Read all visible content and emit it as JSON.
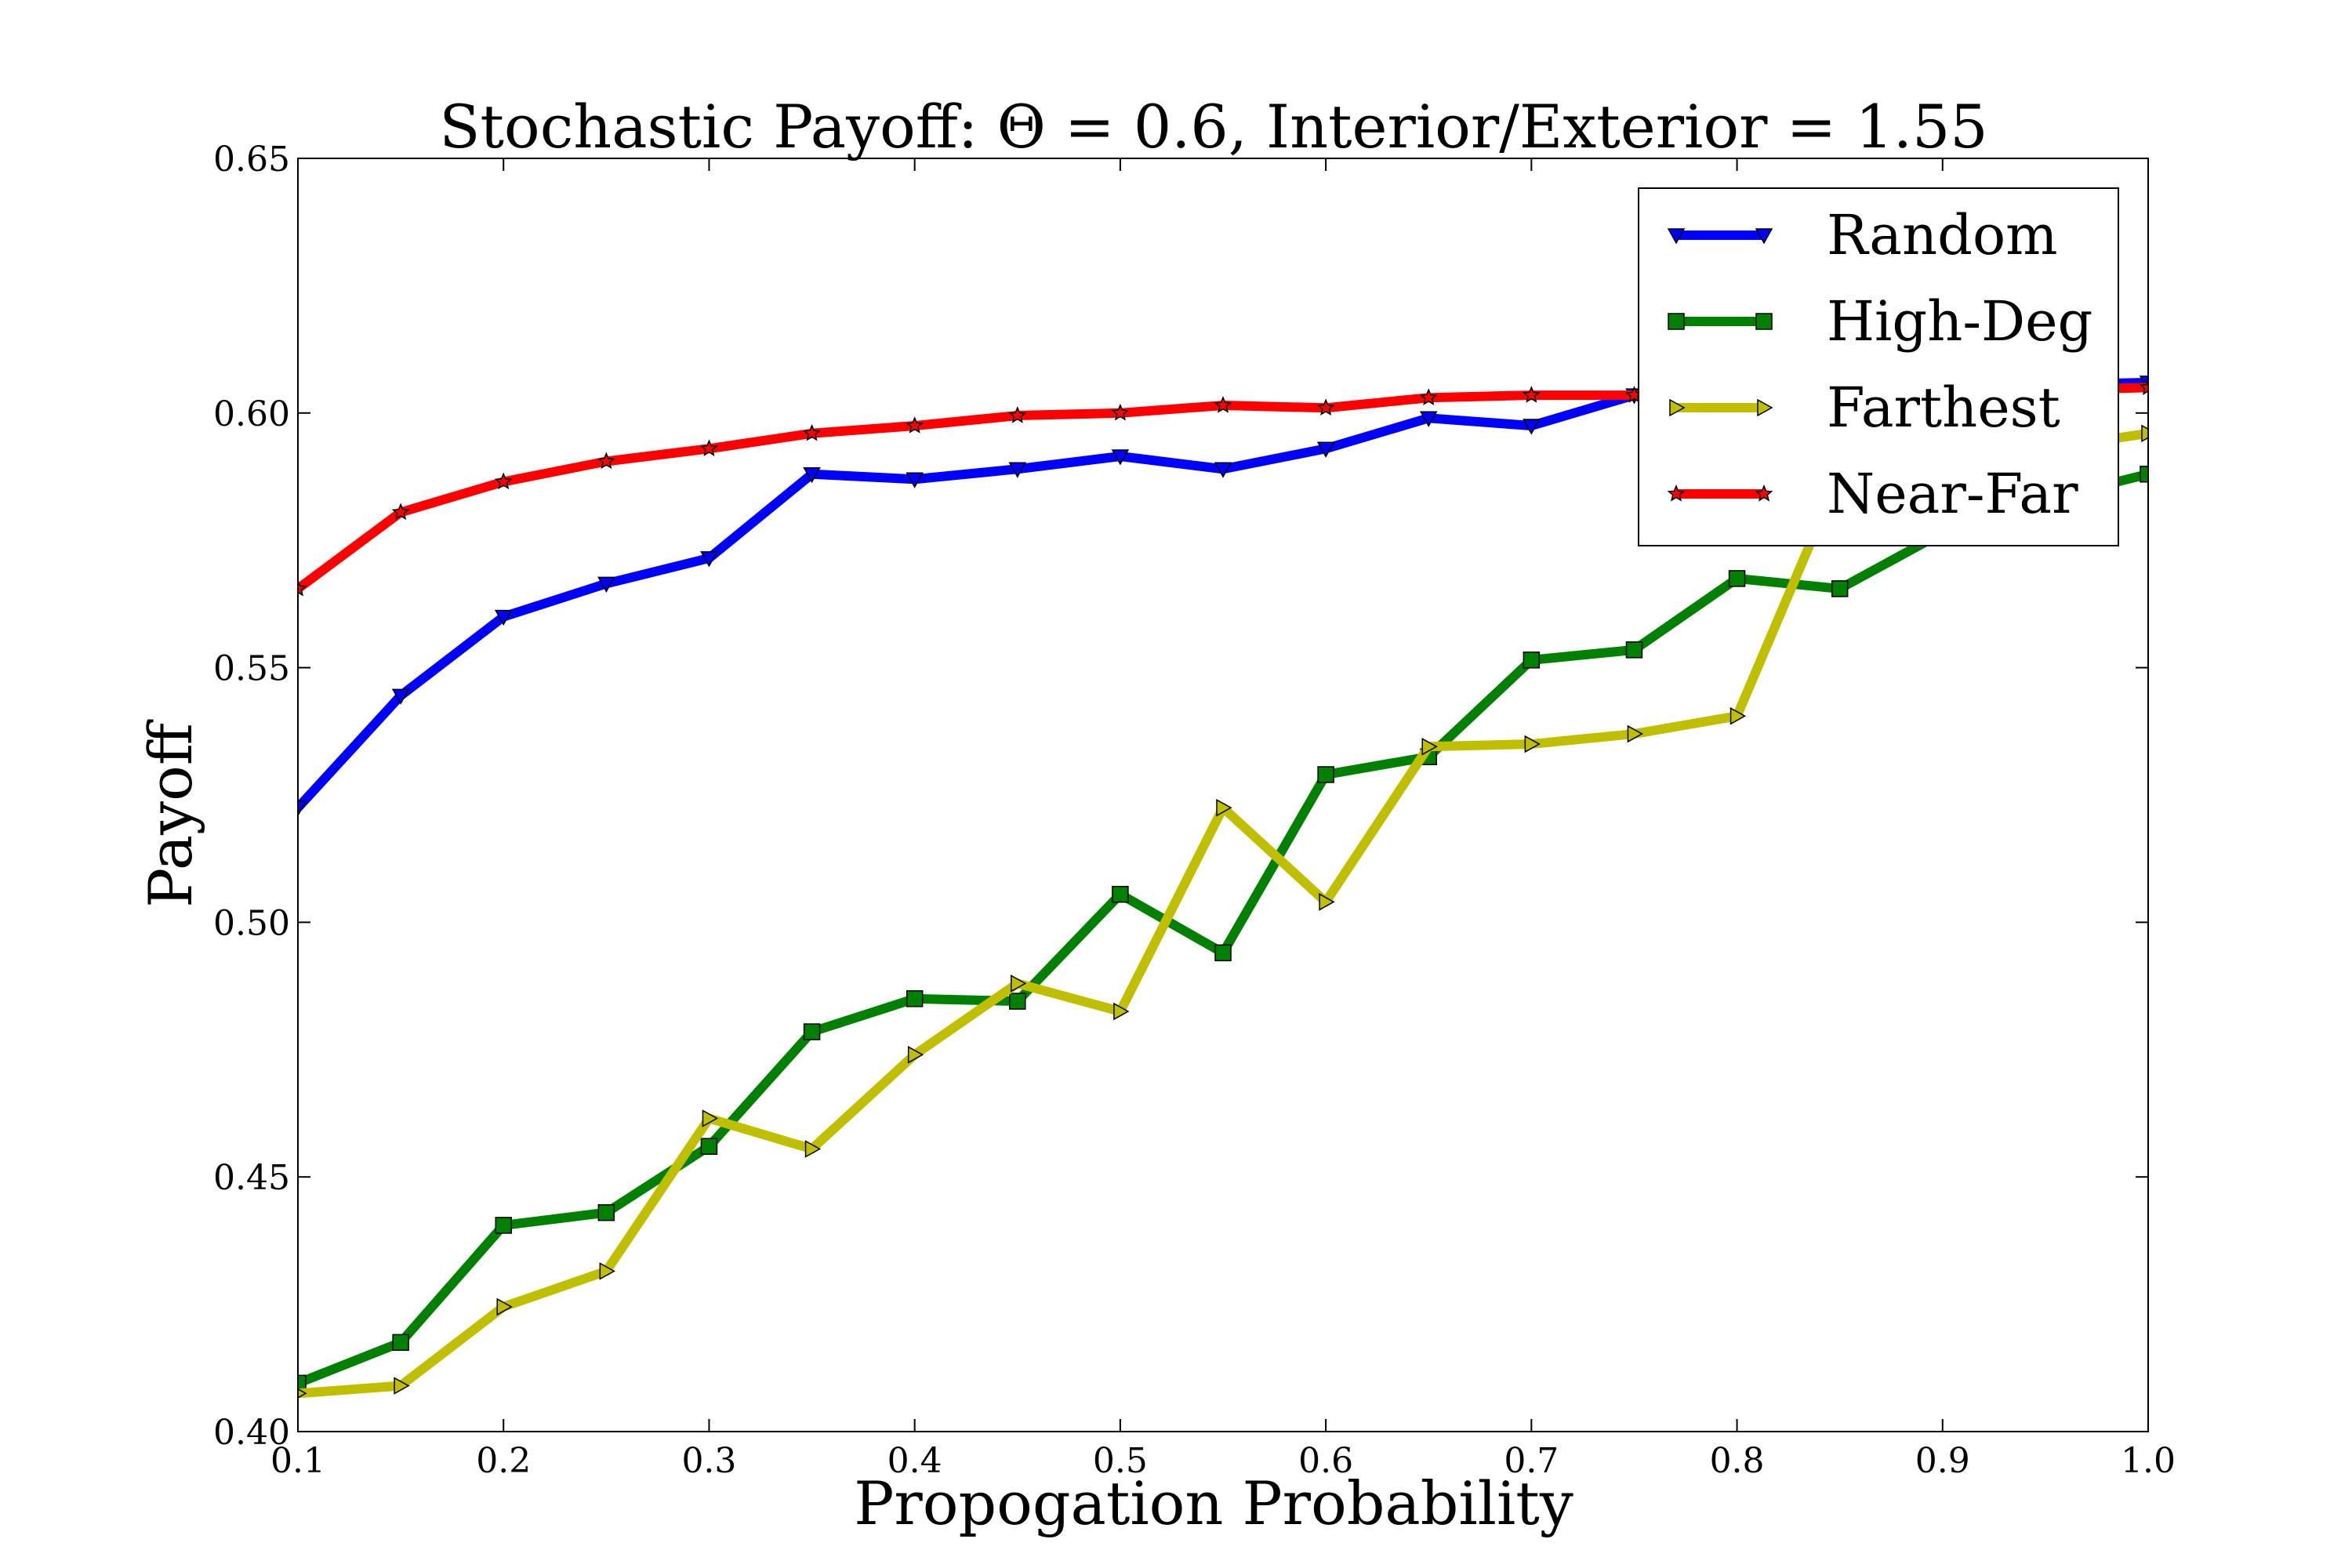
{
  "chart_data": {
    "type": "line",
    "title": "Stochastic Payoff: Θ = 0.6, Interior/Exterior = 1.55",
    "xlabel": "Propogation Probability",
    "ylabel": "Payoff",
    "xlim": [
      0.1,
      1.0
    ],
    "ylim": [
      0.4,
      0.65
    ],
    "xticks": [
      "0.1",
      "0.2",
      "0.3",
      "0.4",
      "0.5",
      "0.6",
      "0.7",
      "0.8",
      "0.9",
      "1.0"
    ],
    "yticks": [
      "0.40",
      "0.45",
      "0.50",
      "0.55",
      "0.60",
      "0.65"
    ],
    "grid": false,
    "legend_position": "top-right",
    "x": [
      0.1,
      0.15,
      0.2,
      0.25,
      0.3,
      0.35,
      0.4,
      0.45,
      0.5,
      0.55,
      0.6,
      0.65,
      0.7,
      0.75,
      0.8,
      0.85,
      0.9,
      0.95,
      1.0
    ],
    "series": [
      {
        "name": "Random",
        "color": "#0000ff",
        "marker": "triangle-down",
        "values": [
          0.5225,
          0.5445,
          0.56,
          0.5665,
          0.5715,
          0.588,
          0.587,
          0.589,
          0.5915,
          0.589,
          0.593,
          0.599,
          0.5975,
          0.6035,
          0.604,
          0.6045,
          0.605,
          0.6055,
          0.606
        ]
      },
      {
        "name": "High-Deg",
        "color": "#008000",
        "marker": "square",
        "values": [
          0.4095,
          0.4175,
          0.4405,
          0.443,
          0.456,
          0.4785,
          0.485,
          0.4845,
          0.5055,
          0.494,
          0.529,
          0.5325,
          0.5515,
          0.5535,
          0.5675,
          0.5655,
          0.5765,
          0.583,
          0.588
        ]
      },
      {
        "name": "Farthest",
        "color": "#bfbf00",
        "marker": "triangle-right",
        "values": [
          0.4075,
          0.409,
          0.4245,
          0.4315,
          0.4615,
          0.4555,
          0.474,
          0.488,
          0.4825,
          0.5225,
          0.504,
          0.5345,
          0.535,
          0.537,
          0.5405,
          0.588,
          0.59,
          0.593,
          0.596
        ]
      },
      {
        "name": "Near-Far",
        "color": "#ff0000",
        "marker": "star",
        "values": [
          0.5655,
          0.5805,
          0.5865,
          0.5905,
          0.593,
          0.596,
          0.5975,
          0.5995,
          0.6,
          0.6015,
          0.601,
          0.603,
          0.6035,
          0.6035,
          0.604,
          0.604,
          0.6045,
          0.6045,
          0.605
        ]
      }
    ]
  }
}
